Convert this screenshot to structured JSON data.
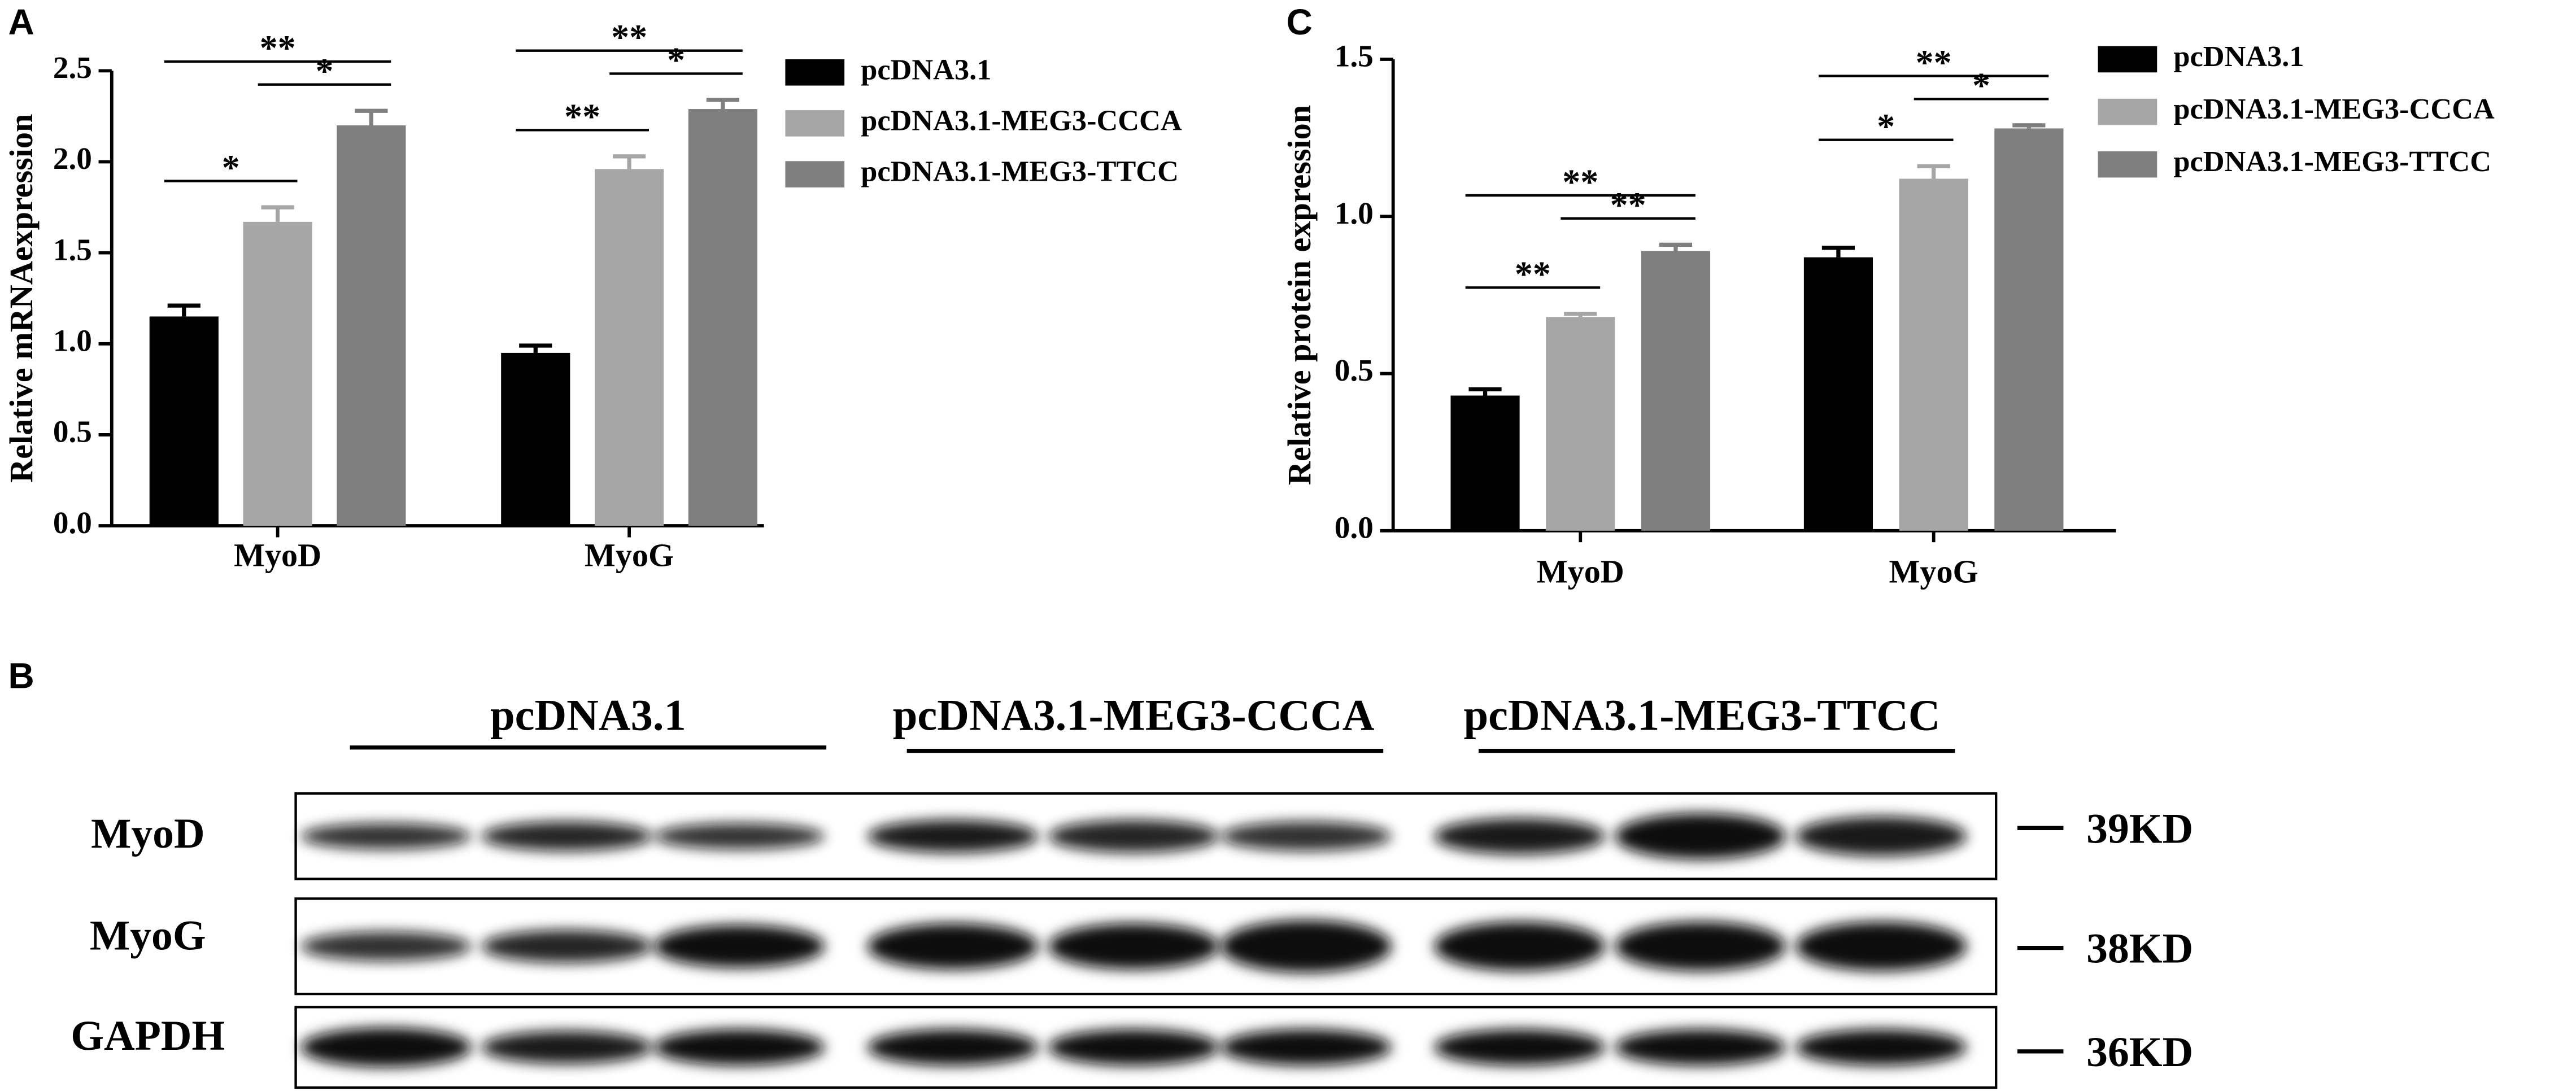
{
  "chart_data": [
    {
      "type": "bar",
      "panel": "A",
      "ylabel": "Relative mRNAexpression",
      "categories": [
        "MyoD",
        "MyoG"
      ],
      "series": [
        {
          "name": "pcDNA3.1",
          "color": "#000000",
          "values": [
            1.15,
            0.95
          ],
          "errors": [
            0.06,
            0.04
          ]
        },
        {
          "name": "pcDNA3.1-MEG3-CCCA",
          "color": "#a6a6a6",
          "values": [
            1.67,
            1.96
          ],
          "errors": [
            0.08,
            0.07
          ]
        },
        {
          "name": "pcDNA3.1-MEG3-TTCC",
          "color": "#7f7f7f",
          "values": [
            2.2,
            2.29
          ],
          "errors": [
            0.08,
            0.05
          ]
        }
      ],
      "ylim": [
        0,
        2.5
      ],
      "yticks": [
        {
          "value": 0,
          "label": "0.0"
        },
        {
          "value": 0.5,
          "label": "0.5"
        },
        {
          "value": 1,
          "label": "1.0"
        },
        {
          "value": 1.5,
          "label": "1.5"
        },
        {
          "value": 2,
          "label": "2.0"
        },
        {
          "value": 2.5,
          "label": "2.5"
        }
      ],
      "annotations": [
        {
          "label": "*",
          "category": 0,
          "pair": [
            0,
            1
          ]
        },
        {
          "label": "*",
          "category": 0,
          "pair": [
            1,
            2
          ]
        },
        {
          "label": "**",
          "category": 0,
          "pair": [
            0,
            2
          ]
        },
        {
          "label": "**",
          "category": 1,
          "pair": [
            0,
            1
          ]
        },
        {
          "label": "*",
          "category": 1,
          "pair": [
            1,
            2
          ]
        },
        {
          "label": "**",
          "category": 1,
          "pair": [
            0,
            2
          ]
        }
      ]
    },
    {
      "type": "bar",
      "panel": "C",
      "ylabel": "Relative protein expression",
      "categories": [
        "MyoD",
        "MyoG"
      ],
      "series": [
        {
          "name": "pcDNA3.1",
          "color": "#000000",
          "values": [
            0.43,
            0.87
          ],
          "errors": [
            0.02,
            0.03
          ]
        },
        {
          "name": "pcDNA3.1-MEG3-CCCA",
          "color": "#a6a6a6",
          "values": [
            0.68,
            1.12
          ],
          "errors": [
            0.01,
            0.04
          ]
        },
        {
          "name": "pcDNA3.1-MEG3-TTCC",
          "color": "#7f7f7f",
          "values": [
            0.89,
            1.28
          ],
          "errors": [
            0.02,
            0.01
          ]
        }
      ],
      "ylim": [
        0,
        1.5
      ],
      "yticks": [
        {
          "value": 0,
          "label": "0.0"
        },
        {
          "value": 0.5,
          "label": "0.5"
        },
        {
          "value": 1,
          "label": "1.0"
        },
        {
          "value": 1.5,
          "label": "1.5"
        }
      ],
      "annotations": [
        {
          "label": "**",
          "category": 0,
          "pair": [
            0,
            1
          ]
        },
        {
          "label": "**",
          "category": 0,
          "pair": [
            1,
            2
          ]
        },
        {
          "label": "**",
          "category": 0,
          "pair": [
            0,
            2
          ]
        },
        {
          "label": "*",
          "category": 1,
          "pair": [
            0,
            1
          ]
        },
        {
          "label": "*",
          "category": 1,
          "pair": [
            1,
            2
          ]
        },
        {
          "label": "**",
          "category": 1,
          "pair": [
            0,
            2
          ]
        }
      ]
    }
  ],
  "blot": {
    "panel": "B",
    "groups": [
      "pcDNA3.1",
      "pcDNA3.1-MEG3-CCCA",
      "pcDNA3.1-MEG3-TTCC"
    ],
    "rows": [
      {
        "label": "MyoD",
        "size": "39KD"
      },
      {
        "label": "MyoG",
        "size": "38KD"
      },
      {
        "label": "GAPDH",
        "size": "36KD"
      }
    ]
  }
}
